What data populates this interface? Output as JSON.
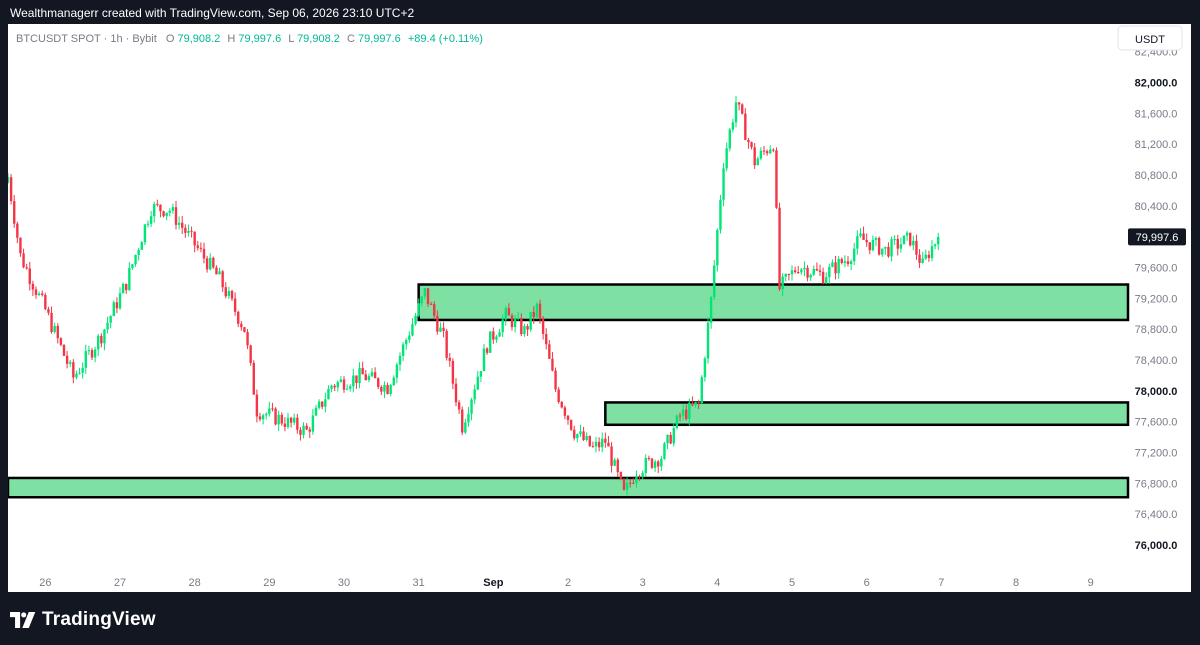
{
  "header": {
    "caption": "Wealthmanagerr created with TradingView.com, Sep 06, 2026 23:10 UTC+2"
  },
  "legend": {
    "symbol": "BTCUSDT SPOT · 1h · Bybit",
    "o_label": "O",
    "o_value": "79,908.2",
    "h_label": "H",
    "h_value": "79,997.6",
    "l_label": "L",
    "l_value": "79,908.2",
    "c_label": "C",
    "c_value": "79,997.6",
    "change": "+89.4 (+0.11%)"
  },
  "currency_button": "USDT",
  "footer": {
    "brand": "TradingView"
  },
  "colors": {
    "up": "#26a69a",
    "up_bright": "#00e676",
    "down": "#f23645",
    "zone_fill": "#7fe0a3",
    "zone_border": "#000000",
    "text_muted": "#787b86"
  },
  "chart_data": {
    "type": "candlestick",
    "x_axis": {
      "type": "datetime",
      "range": [
        "2026-08-25T12:00",
        "2026-09-09T12:00"
      ],
      "ticks": [
        {
          "date": "2026-08-26",
          "label": "26"
        },
        {
          "date": "2026-08-27",
          "label": "27"
        },
        {
          "date": "2026-08-28",
          "label": "28"
        },
        {
          "date": "2026-08-29",
          "label": "29"
        },
        {
          "date": "2026-08-30",
          "label": "30"
        },
        {
          "date": "2026-08-31",
          "label": "31"
        },
        {
          "date": "2026-09-01",
          "label": "Sep",
          "bold": true
        },
        {
          "date": "2026-09-02",
          "label": "2"
        },
        {
          "date": "2026-09-03",
          "label": "3"
        },
        {
          "date": "2026-09-04",
          "label": "4"
        },
        {
          "date": "2026-09-05",
          "label": "5"
        },
        {
          "date": "2026-09-06",
          "label": "6"
        },
        {
          "date": "2026-09-07",
          "label": "7"
        },
        {
          "date": "2026-09-08",
          "label": "8"
        },
        {
          "date": "2026-09-09",
          "label": "9"
        }
      ]
    },
    "y_axis": {
      "range": [
        75650,
        82760
      ],
      "ticks": [
        {
          "value": 82400,
          "label": "82,400.0"
        },
        {
          "value": 82000,
          "label": "82,000.0",
          "bold": true
        },
        {
          "value": 81600,
          "label": "81,600.0"
        },
        {
          "value": 81200,
          "label": "81,200.0"
        },
        {
          "value": 80800,
          "label": "80,800.0"
        },
        {
          "value": 80400,
          "label": "80,400.0"
        },
        {
          "value": 80000,
          "label": "80,000.0",
          "bold": true
        },
        {
          "value": 79600,
          "label": "79,600.0"
        },
        {
          "value": 79200,
          "label": "79,200.0"
        },
        {
          "value": 78800,
          "label": "78,800.0"
        },
        {
          "value": 78400,
          "label": "78,400.0"
        },
        {
          "value": 78000,
          "label": "78,000.0",
          "bold": true
        },
        {
          "value": 77600,
          "label": "77,600.0"
        },
        {
          "value": 77200,
          "label": "77,200.0"
        },
        {
          "value": 76800,
          "label": "76,800.0"
        },
        {
          "value": 76400,
          "label": "76,400.0"
        },
        {
          "value": 76000,
          "label": "76,000.0",
          "bold": true
        }
      ]
    },
    "last_price": {
      "value": 79997.6,
      "label": "79,997.6"
    },
    "zones": [
      {
        "name": "upper-demand-zone",
        "x_start": "2026-08-31T00:00",
        "x_end": "2026-09-09T12:00",
        "y_low": 78920,
        "y_high": 79380
      },
      {
        "name": "middle-demand-zone",
        "x_start": "2026-09-02T12:00",
        "x_end": "2026-09-09T12:00",
        "y_low": 77560,
        "y_high": 77850
      },
      {
        "name": "lower-demand-zone",
        "x_start": "2026-08-25T12:00",
        "x_end": "2026-09-09T12:00",
        "y_low": 76620,
        "y_high": 76870
      }
    ],
    "price_path_knots": [
      [
        "2026-08-25T12:00",
        80700,
        80850
      ],
      [
        "2026-08-25T16:00",
        79500,
        80000
      ],
      [
        "2026-08-26T00:00",
        78900,
        79200
      ],
      [
        "2026-08-26T09:00",
        78050,
        78300
      ],
      [
        "2026-08-26T12:00",
        78400,
        78300
      ],
      [
        "2026-08-26T18:00",
        78700,
        78750
      ],
      [
        "2026-08-27T02:00",
        79500,
        79300
      ],
      [
        "2026-08-27T10:00",
        80500,
        80250
      ],
      [
        "2026-08-27T16:00",
        80300,
        80400
      ],
      [
        "2026-08-28T00:00",
        80100,
        79700
      ],
      [
        "2026-08-28T08:00",
        79500,
        79400
      ],
      [
        "2026-08-28T16:00",
        78750,
        78850
      ],
      [
        "2026-08-28T20:00",
        77700,
        77800
      ],
      [
        "2026-08-29T04:00",
        77650,
        77600
      ],
      [
        "2026-08-29T12:00",
        77500,
        77450
      ],
      [
        "2026-08-29T20:00",
        78000,
        78150
      ],
      [
        "2026-08-30T06:00",
        78200,
        78200
      ],
      [
        "2026-08-30T14:00",
        78100,
        78000
      ],
      [
        "2026-08-30T22:00",
        78800,
        78950
      ],
      [
        "2026-08-31T02:00",
        79400,
        79150
      ],
      [
        "2026-08-31T08:00",
        78700,
        78650
      ],
      [
        "2026-08-31T14:00",
        77500,
        77600
      ],
      [
        "2026-08-31T22:00",
        78550,
        78650
      ],
      [
        "2026-09-01T04:00",
        78900,
        79050
      ],
      [
        "2026-09-01T10:00",
        78700,
        78850
      ],
      [
        "2026-09-01T14:00",
        79150,
        79000
      ],
      [
        "2026-09-01T20:00",
        77950,
        78100
      ],
      [
        "2026-09-02T02:00",
        77600,
        77350
      ],
      [
        "2026-09-02T08:00",
        77250,
        77250
      ],
      [
        "2026-09-02T12:00",
        77500,
        77200
      ],
      [
        "2026-09-02T18:00",
        76700,
        76600
      ],
      [
        "2026-09-02T22:00",
        77050,
        76900
      ],
      [
        "2026-09-03T06:00",
        77100,
        77200
      ],
      [
        "2026-09-03T12:00",
        77650,
        77700
      ],
      [
        "2026-09-03T18:00",
        77850,
        77800
      ],
      [
        "2026-09-03T22:00",
        79050,
        79300
      ],
      [
        "2026-09-04T02:00",
        81150,
        80800
      ],
      [
        "2026-09-04T06:00",
        81700,
        81800
      ],
      [
        "2026-09-04T12:00",
        81000,
        80950
      ],
      [
        "2026-09-04T18:00",
        81250,
        81200
      ],
      [
        "2026-09-04T20:00",
        79250,
        79400
      ],
      [
        "2026-09-05T02:00",
        79600,
        79650
      ],
      [
        "2026-09-05T10:00",
        79500,
        79500
      ],
      [
        "2026-09-05T18:00",
        79700,
        79750
      ],
      [
        "2026-09-05T22:00",
        80000,
        79950
      ],
      [
        "2026-09-06T06:00",
        79800,
        79850
      ],
      [
        "2026-09-06T14:00",
        79950,
        80000
      ],
      [
        "2026-09-06T18:00",
        79700,
        79550
      ],
      [
        "2026-09-06T20:00",
        79800,
        79800
      ],
      [
        "2026-09-06T23:00",
        79997.6,
        79997.6
      ]
    ]
  }
}
